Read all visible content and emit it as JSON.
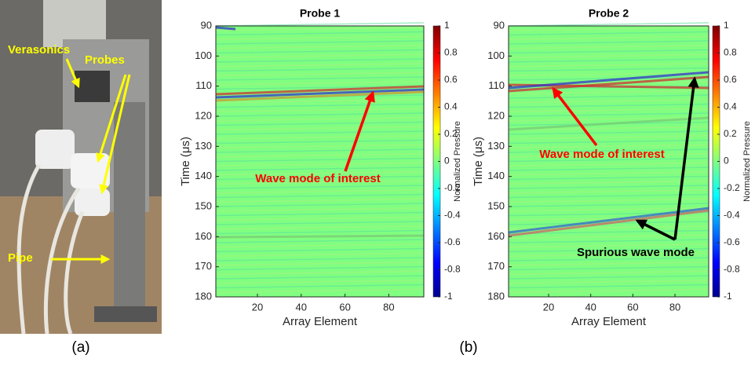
{
  "photo": {
    "labels": [
      "Verasonics",
      "Probes",
      "Pipe"
    ],
    "panel_label": "(a)"
  },
  "panel_label_b": "(b)",
  "chart_data": [
    {
      "type": "heatmap",
      "title": "Probe 1",
      "x_label": "Array Element",
      "y_label": "Time (μs)",
      "xlim": [
        1,
        96
      ],
      "xticks": [
        20,
        40,
        60,
        80
      ],
      "ylim": [
        90,
        180
      ],
      "yticks": [
        90,
        100,
        110,
        120,
        130,
        140,
        150,
        160,
        170,
        180
      ],
      "y_reversed": true,
      "colorbar_label": "Normalized Pressure",
      "clim": [
        -1,
        1
      ],
      "cticks": [
        -1,
        -0.8,
        -0.6,
        -0.4,
        -0.2,
        0,
        0.2,
        0.4,
        0.6,
        0.8,
        1
      ],
      "annotations": [
        {
          "text": "Wave mode of interest",
          "color": "#ff0000"
        }
      ]
    },
    {
      "type": "heatmap",
      "title": "Probe 2",
      "x_label": "Array Element",
      "y_label": "Time (μs)",
      "xlim": [
        1,
        96
      ],
      "xticks": [
        20,
        40,
        60,
        80
      ],
      "ylim": [
        90,
        180
      ],
      "yticks": [
        90,
        100,
        110,
        120,
        130,
        140,
        150,
        160,
        170,
        180
      ],
      "y_reversed": true,
      "colorbar_label": "Normalized Pressure",
      "clim": [
        -1,
        1
      ],
      "cticks": [
        -1,
        -0.8,
        -0.6,
        -0.4,
        -0.2,
        0,
        0.2,
        0.4,
        0.6,
        0.8,
        1
      ],
      "annotations": [
        {
          "text": "Wave mode of interest",
          "color": "#ff0000"
        },
        {
          "text": "Spurious wave mode",
          "color": "#000000"
        }
      ]
    }
  ]
}
